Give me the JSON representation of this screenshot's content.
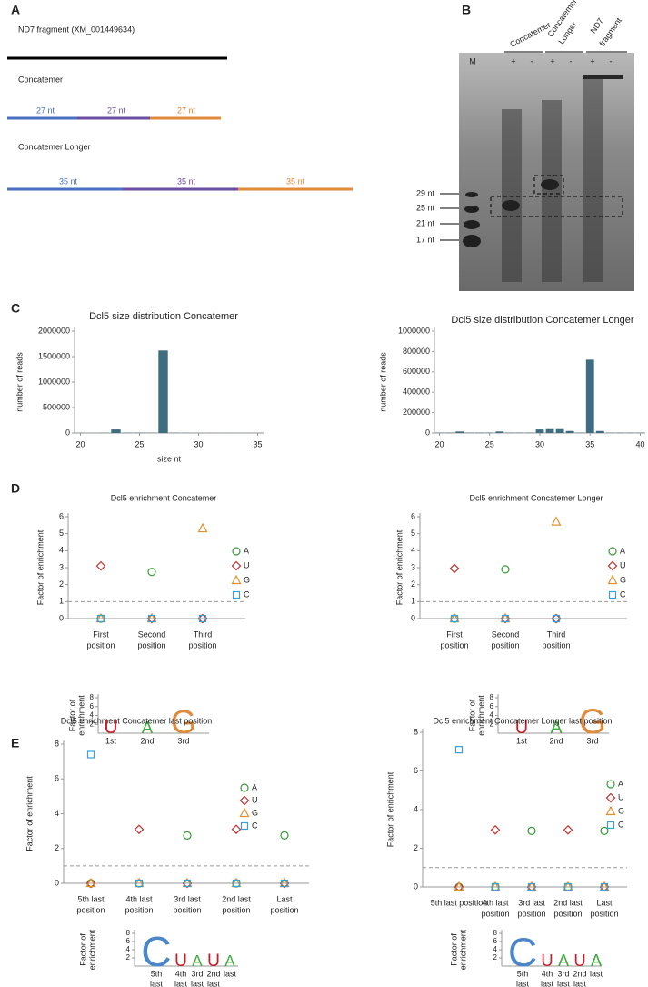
{
  "panel_labels": [
    "A",
    "B",
    "C",
    "D",
    "E"
  ],
  "construct_map": {
    "title": "ND7 fragment (XM_001449634)",
    "constructs": [
      {
        "name": "Concatemer",
        "segments": [
          "27 nt",
          "27 nt",
          "27 nt"
        ]
      },
      {
        "name": "Concatemer Longer",
        "segments": [
          "35 nt",
          "35 nt",
          "35 nt"
        ]
      }
    ]
  },
  "gel": {
    "groups": [
      [
        "Concatemer"
      ],
      [
        "Concatemer",
        "Longer"
      ],
      [
        "ND7",
        "fragment"
      ]
    ],
    "marker_lane": "M",
    "lanes": [
      "+",
      "-",
      "+",
      "-",
      "+",
      "-"
    ],
    "size_markers": [
      "29 nt",
      "25 nt",
      "21 nt",
      "17 nt"
    ]
  },
  "chart_data": [
    {
      "type": "bar",
      "title": "Dcl5 size distribution Concatemer",
      "xlabel": "size nt",
      "ylabel": "number of reads",
      "color": "#3e6c80",
      "x": [
        20,
        21,
        22,
        23,
        24,
        25,
        26,
        27,
        28,
        29,
        30,
        31,
        32,
        33,
        34,
        35
      ],
      "values": [
        3000,
        2000,
        4000,
        70000,
        5000,
        6000,
        4000,
        1620000,
        5000,
        3000,
        2000,
        2000,
        2000,
        2000,
        2000,
        2000
      ],
      "xlim": [
        19.5,
        35.5
      ],
      "xticks": [
        20,
        25,
        30,
        35
      ],
      "ylim": [
        0,
        2000000
      ],
      "yticks": [
        0,
        500000,
        1000000,
        1500000,
        2000000
      ]
    },
    {
      "type": "bar",
      "title": "Dcl5 size distribution Concatemer Longer",
      "ylabel": "number of reads",
      "color": "#3e6c80",
      "x": [
        20,
        21,
        22,
        23,
        24,
        25,
        26,
        27,
        28,
        29,
        30,
        31,
        32,
        33,
        34,
        35,
        36,
        37,
        38,
        39,
        40
      ],
      "values": [
        3000,
        4000,
        15000,
        4000,
        4000,
        4000,
        15000,
        4000,
        4000,
        4000,
        35000,
        38000,
        38000,
        20000,
        4000,
        720000,
        20000,
        3000,
        3000,
        3000,
        3000
      ],
      "xlim": [
        19.5,
        40.5
      ],
      "xticks": [
        20,
        25,
        30,
        35,
        40
      ],
      "ylim": [
        0,
        1000000
      ],
      "yticks": [
        0,
        200000,
        400000,
        600000,
        800000,
        1000000
      ]
    },
    {
      "type": "scatter",
      "title": "Dcl5 enrichment Concatemer",
      "ylabel": "Factor of enrichment",
      "reference_line": 1,
      "categories": [
        [
          "First",
          "position"
        ],
        [
          "Second",
          "position"
        ],
        [
          "Third",
          "position"
        ]
      ],
      "ylim": [
        0,
        6
      ],
      "yticks": [
        0,
        1,
        2,
        3,
        4,
        5,
        6
      ],
      "series": [
        {
          "name": "A",
          "color": "#3a9a3a",
          "marker": "circle",
          "values": [
            0,
            2.75,
            0
          ]
        },
        {
          "name": "U",
          "color": "#c0302a",
          "marker": "diamond",
          "values": [
            3.1,
            0,
            0
          ]
        },
        {
          "name": "G",
          "color": "#e0902e",
          "marker": "triangle",
          "values": [
            0,
            0,
            5.3
          ]
        },
        {
          "name": "C",
          "color": "#3aa0d8",
          "marker": "square",
          "values": [
            0,
            0,
            0
          ]
        }
      ]
    },
    {
      "type": "logo",
      "ylabel": [
        "Factor of",
        "enrichment"
      ],
      "categories": [
        [
          "1st"
        ],
        [
          "2nd"
        ],
        [
          "3rd"
        ]
      ],
      "letters": [
        "U",
        "A",
        "G"
      ],
      "values": [
        3.1,
        2.75,
        5.3
      ],
      "colors": [
        "#c81e2a",
        "#3aaa3a",
        "#e08a3c"
      ],
      "ylim": [
        0,
        8
      ],
      "yticks": [
        2,
        4,
        6,
        8
      ]
    },
    {
      "type": "scatter",
      "title": "Dcl5 enrichment Concatemer Longer",
      "ylabel": "Factor of enrichment",
      "reference_line": 1,
      "categories": [
        [
          "First",
          "position"
        ],
        [
          "Second",
          "position"
        ],
        [
          "Third",
          "position"
        ]
      ],
      "ylim": [
        0,
        6
      ],
      "yticks": [
        0,
        1,
        2,
        3,
        4,
        5,
        6
      ],
      "series": [
        {
          "name": "A",
          "color": "#3a9a3a",
          "marker": "circle",
          "values": [
            0,
            2.9,
            0
          ]
        },
        {
          "name": "U",
          "color": "#c0302a",
          "marker": "diamond",
          "values": [
            2.95,
            0,
            0
          ]
        },
        {
          "name": "G",
          "color": "#e0902e",
          "marker": "triangle",
          "values": [
            0,
            0,
            5.7
          ]
        },
        {
          "name": "C",
          "color": "#3aa0d8",
          "marker": "square",
          "values": [
            0,
            0,
            0
          ]
        }
      ]
    },
    {
      "type": "logo",
      "ylabel": [
        "Factor of",
        "enrichment"
      ],
      "categories": [
        [
          "1st"
        ],
        [
          "2nd"
        ],
        [
          "3rd"
        ]
      ],
      "letters": [
        "U",
        "A",
        "G"
      ],
      "values": [
        2.95,
        2.9,
        5.7
      ],
      "colors": [
        "#c81e2a",
        "#3aaa3a",
        "#e08a3c"
      ],
      "ylim": [
        0,
        8
      ],
      "yticks": [
        2,
        4,
        6,
        8
      ]
    },
    {
      "type": "scatter",
      "title": "Dcl5 enrichment Concatemer last position",
      "ylabel": "Factor of enrichment",
      "reference_line": 1,
      "categories": [
        [
          "5th last",
          "position"
        ],
        [
          "4th last",
          "position"
        ],
        [
          "3rd last",
          "position"
        ],
        [
          "2nd last",
          "position"
        ],
        [
          "Last",
          "position"
        ]
      ],
      "ylim": [
        0,
        8
      ],
      "yticks": [
        0,
        2,
        4,
        6,
        8
      ],
      "series": [
        {
          "name": "A",
          "color": "#3a9a3a",
          "marker": "circle",
          "values": [
            0,
            0,
            2.75,
            0,
            2.75
          ]
        },
        {
          "name": "U",
          "color": "#c0302a",
          "marker": "diamond",
          "values": [
            0,
            3.1,
            0,
            3.1,
            0
          ]
        },
        {
          "name": "G",
          "color": "#e0902e",
          "marker": "triangle",
          "values": [
            0,
            0,
            0,
            0,
            0
          ]
        },
        {
          "name": "C",
          "color": "#3aa0d8",
          "marker": "square",
          "values": [
            7.4,
            0,
            0,
            0,
            0
          ]
        }
      ]
    },
    {
      "type": "logo",
      "ylabel": [
        "Factor of",
        "enrichment"
      ],
      "categories": [
        [
          "5th",
          "last"
        ],
        [
          "4th",
          "last"
        ],
        [
          "3rd",
          "last"
        ],
        [
          "2nd",
          "last"
        ],
        [
          "last"
        ]
      ],
      "letters": [
        "C",
        "U",
        "A",
        "U",
        "A"
      ],
      "values": [
        7.4,
        3.1,
        2.75,
        3.1,
        2.75
      ],
      "colors": [
        "#4a86c8",
        "#c81e2a",
        "#3aaa3a",
        "#c81e2a",
        "#3aaa3a"
      ],
      "ylim": [
        0,
        8
      ],
      "yticks": [
        2,
        4,
        6,
        8
      ]
    },
    {
      "type": "scatter",
      "title": "Dcl5 enrichment Concatemer Longer last position",
      "ylabel": "Factor of enrichment",
      "reference_line": 1,
      "categories": [
        [
          "5th last position"
        ],
        [
          "4th last",
          "position"
        ],
        [
          "3rd last",
          "position"
        ],
        [
          "2nd last",
          "position"
        ],
        [
          "Last",
          "position"
        ]
      ],
      "ylim": [
        0,
        8
      ],
      "yticks": [
        0,
        2,
        4,
        6,
        8
      ],
      "series": [
        {
          "name": "A",
          "color": "#3a9a3a",
          "marker": "circle",
          "values": [
            0,
            0,
            2.9,
            0,
            2.9
          ]
        },
        {
          "name": "U",
          "color": "#c0302a",
          "marker": "diamond",
          "values": [
            0,
            2.95,
            0,
            2.95,
            0
          ]
        },
        {
          "name": "G",
          "color": "#e0902e",
          "marker": "triangle",
          "values": [
            0,
            0,
            0,
            0,
            0
          ]
        },
        {
          "name": "C",
          "color": "#3aa0d8",
          "marker": "square",
          "values": [
            7.1,
            0,
            0,
            0,
            0
          ]
        }
      ]
    },
    {
      "type": "logo",
      "ylabel": [
        "Factor of",
        "enrichment"
      ],
      "categories": [
        [
          "5th",
          "last"
        ],
        [
          "4th",
          "last"
        ],
        [
          "3rd",
          "last"
        ],
        [
          "2nd",
          "last"
        ],
        [
          "last"
        ]
      ],
      "letters": [
        "C",
        "U",
        "A",
        "U",
        "A"
      ],
      "values": [
        7.1,
        2.95,
        2.9,
        2.95,
        2.9
      ],
      "colors": [
        "#4a86c8",
        "#c81e2a",
        "#3aaa3a",
        "#c81e2a",
        "#3aaa3a"
      ],
      "ylim": [
        0,
        8
      ],
      "yticks": [
        2,
        4,
        6,
        8
      ]
    }
  ]
}
